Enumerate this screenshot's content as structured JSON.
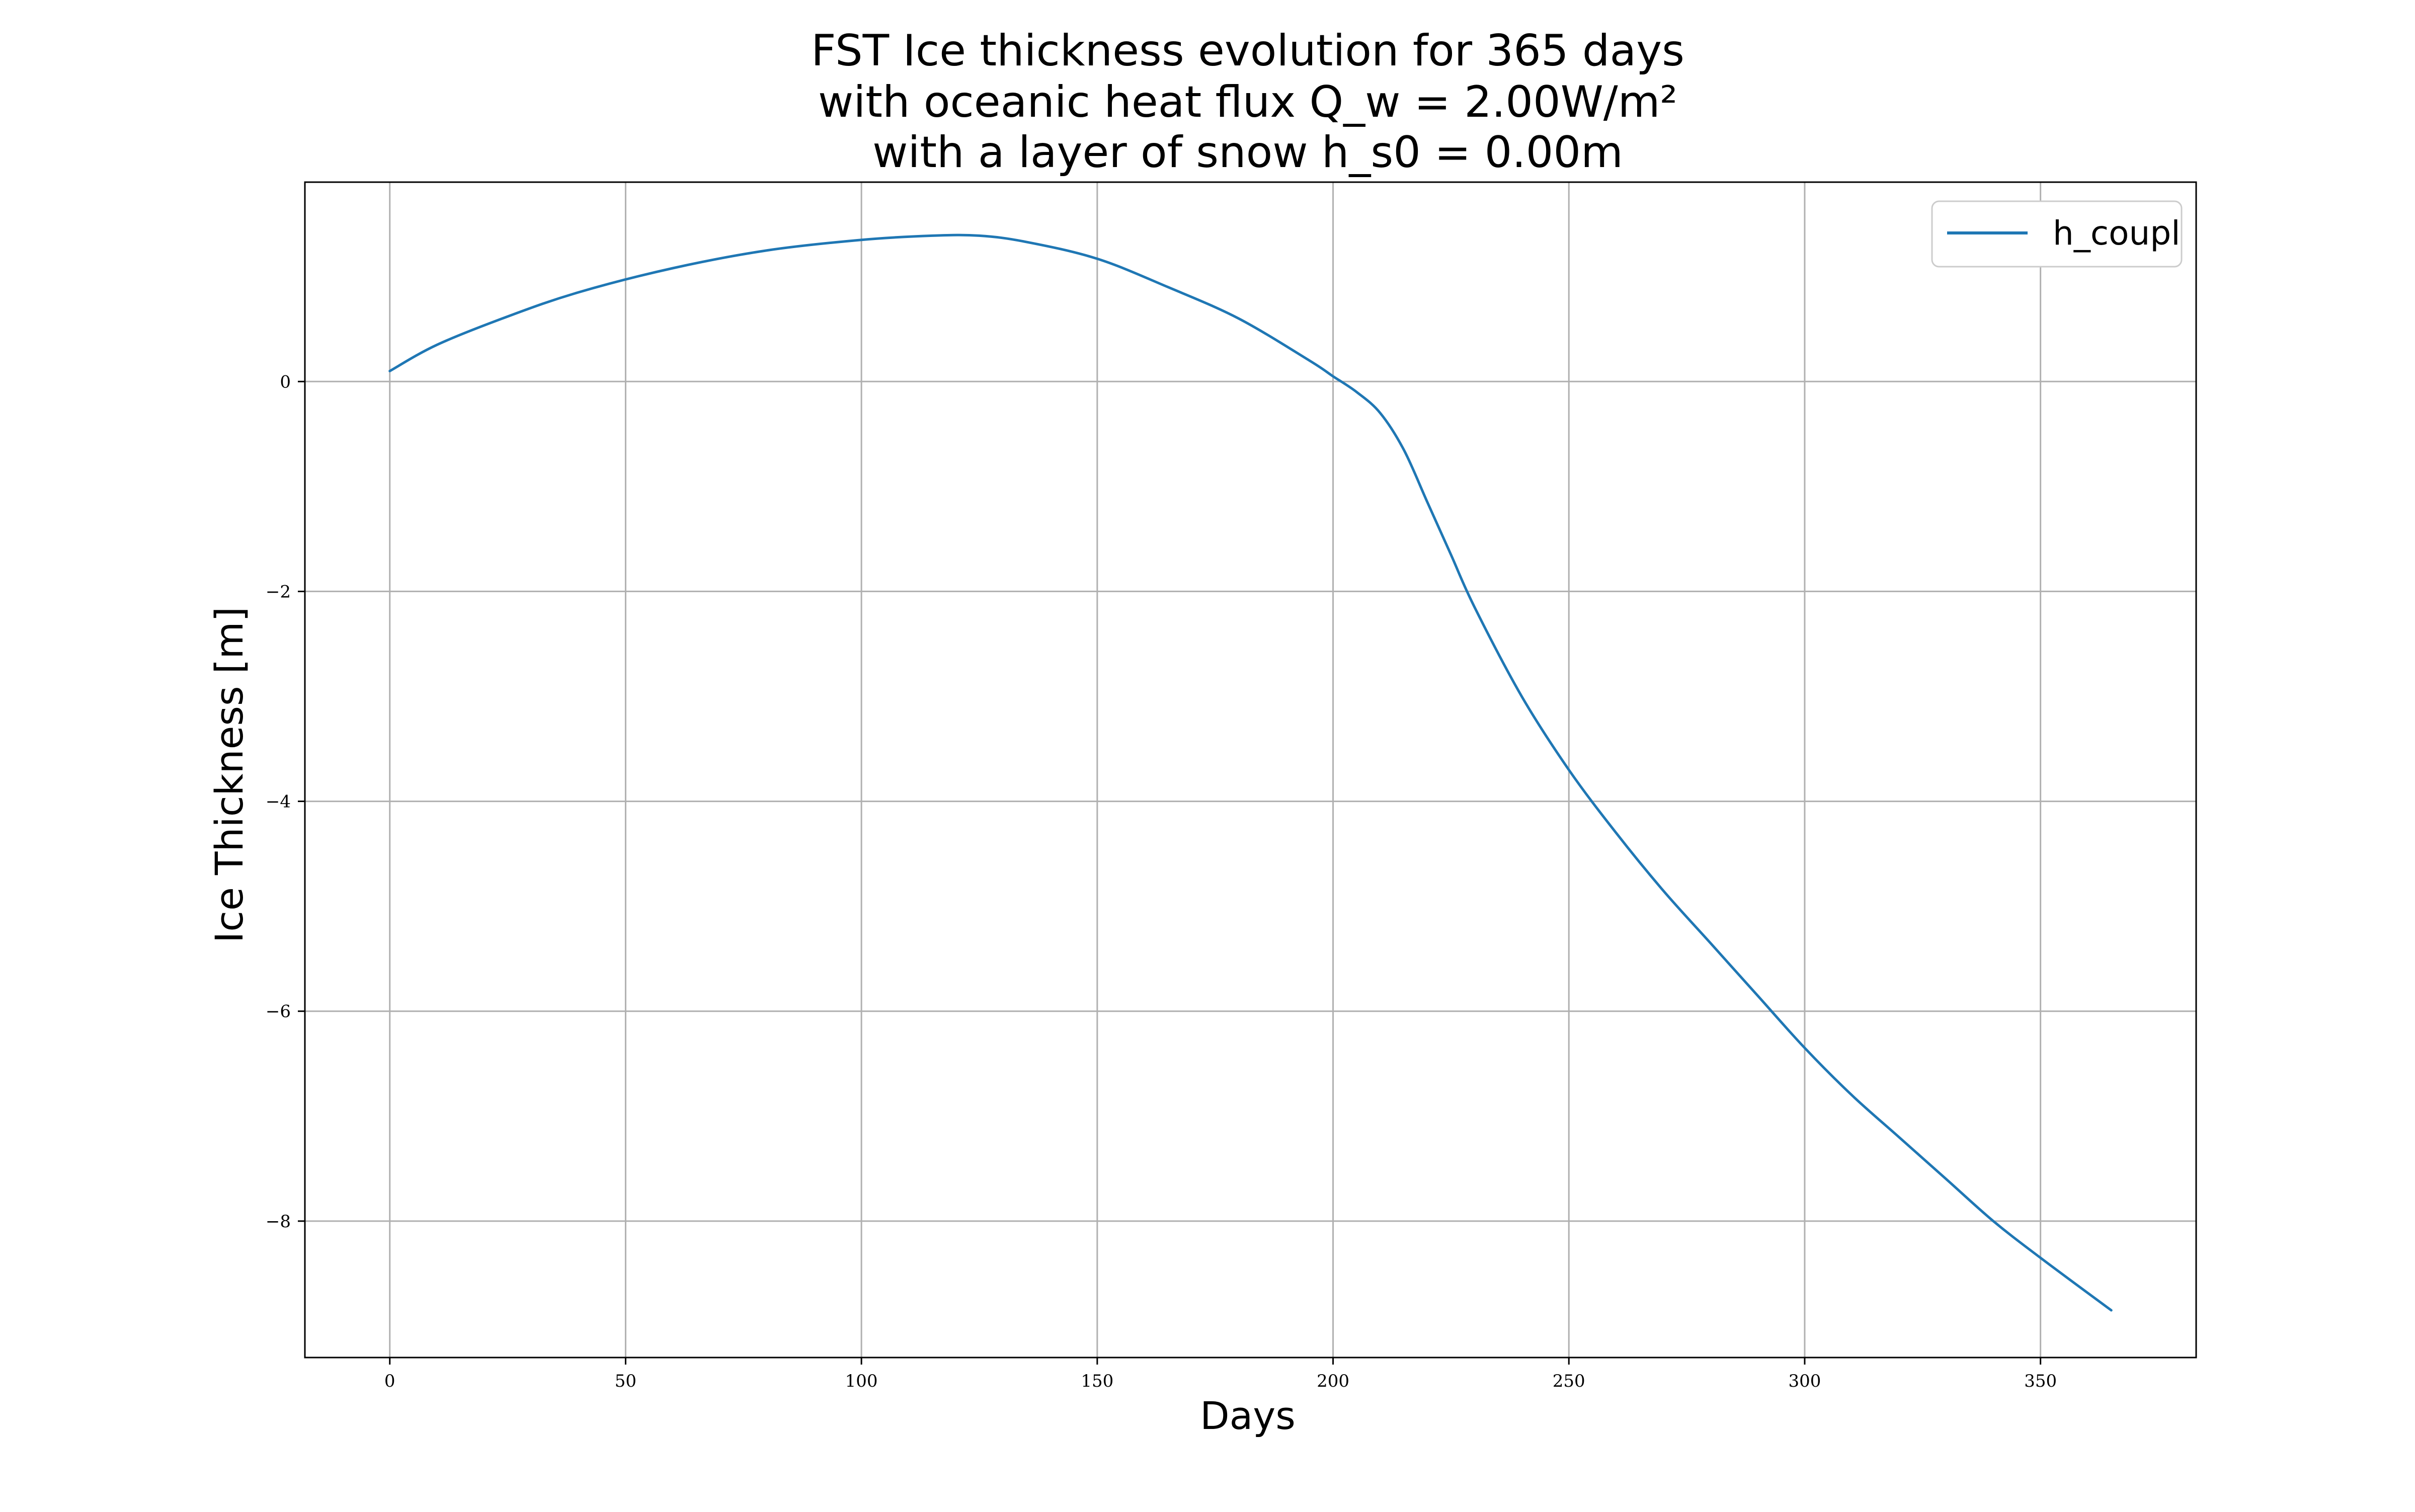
{
  "chart_data": {
    "type": "line",
    "title_lines": [
      "FST Ice thickness evolution for 365 days",
      "with oceanic heat flux Q_w = 2.00W/m²",
      "with a layer of snow h_s0 = 0.00m"
    ],
    "xlabel": "Days",
    "ylabel": "Ice Thickness [m]",
    "xlim": [
      -18,
      383
    ],
    "ylim": [
      -9.3,
      1.9
    ],
    "xticks": [
      0,
      50,
      100,
      150,
      200,
      250,
      300,
      350
    ],
    "yticks": [
      0,
      -2,
      -4,
      -6,
      -8
    ],
    "xtick_labels": [
      "0",
      "50",
      "100",
      "150",
      "200",
      "250",
      "300",
      "350"
    ],
    "ytick_labels": [
      "0",
      "−2",
      "−4",
      "−6",
      "−8"
    ],
    "grid": true,
    "legend_position": "top-right",
    "series": [
      {
        "name": "h_coupl",
        "color": "#1f77b4",
        "x": [
          0,
          10,
          25,
          40,
          60,
          80,
          100,
          115,
          125,
          135,
          150,
          165,
          180,
          195,
          200,
          205,
          210,
          215,
          220,
          225,
          230,
          240,
          250,
          260,
          270,
          280,
          290,
          300,
          310,
          320,
          330,
          340,
          350,
          365
        ],
        "y": [
          0.1,
          0.35,
          0.62,
          0.85,
          1.08,
          1.25,
          1.35,
          1.39,
          1.39,
          1.33,
          1.17,
          0.9,
          0.6,
          0.2,
          0.05,
          -0.1,
          -0.3,
          -0.65,
          -1.15,
          -1.65,
          -2.15,
          -3.0,
          -3.7,
          -4.3,
          -4.85,
          -5.35,
          -5.85,
          -6.35,
          -6.8,
          -7.2,
          -7.6,
          -8.0,
          -8.35,
          -8.85
        ]
      }
    ]
  }
}
